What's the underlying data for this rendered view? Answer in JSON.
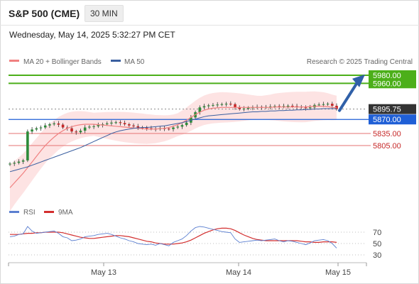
{
  "header": {
    "title": "S&P 500 (CME)",
    "timeframe": "30 MIN"
  },
  "datetime": "Wednesday, May 14, 2025 5:32:27 PM CET",
  "copyright": "Research © 2025 Trading Central",
  "colors": {
    "bollinger": "#f08080",
    "ma50": "#3a5fa0",
    "up_candle": "#2e8b3a",
    "down_candle": "#c62828",
    "resistance": "#4caf1a",
    "current_price": "#333333",
    "pivot": "#1f5fd6",
    "support": "#e57373",
    "arrow": "#3060a8",
    "rsi": "#5b7fd0",
    "rsi_ma": "#d32f2f"
  },
  "chart_data": [
    {
      "type": "candlestick",
      "legend": [
        {
          "name": "MA 20 + Bollinger Bands",
          "color": "#f08080"
        },
        {
          "name": "MA 50",
          "color": "#3a5fa0"
        }
      ],
      "x_ticks": [
        "May 13",
        "May 14",
        "May 15"
      ],
      "levels": [
        {
          "label": "5980.00",
          "value": 5980,
          "kind": "resistance"
        },
        {
          "label": "5960.00",
          "value": 5960,
          "kind": "resistance"
        },
        {
          "label": "5895.75",
          "value": 5895.75,
          "kind": "current"
        },
        {
          "label": "5870.00",
          "value": 5870,
          "kind": "pivot"
        },
        {
          "label": "5835.00",
          "value": 5835,
          "kind": "support"
        },
        {
          "label": "5805.00",
          "value": 5805,
          "kind": "support"
        }
      ],
      "closes": [
        5760,
        5762,
        5765,
        5768,
        5840,
        5845,
        5848,
        5850,
        5855,
        5858,
        5860,
        5857,
        5850,
        5848,
        5840,
        5838,
        5842,
        5850,
        5852,
        5853,
        5856,
        5858,
        5860,
        5862,
        5863,
        5861,
        5858,
        5855,
        5853,
        5850,
        5849,
        5848,
        5847,
        5846,
        5848,
        5847,
        5846,
        5850,
        5852,
        5856,
        5862,
        5875,
        5888,
        5900,
        5903,
        5905,
        5906,
        5907,
        5908,
        5909,
        5908,
        5900,
        5896,
        5897,
        5899,
        5900,
        5901,
        5900,
        5901,
        5902,
        5903,
        5902,
        5903,
        5904,
        5903,
        5902,
        5900,
        5898,
        5900,
        5906,
        5907,
        5908,
        5909,
        5904,
        5895.75
      ],
      "ma20": [
        5700,
        5712,
        5724,
        5736,
        5750,
        5764,
        5778,
        5792,
        5805,
        5816,
        5826,
        5835,
        5842,
        5848,
        5852,
        5855,
        5857,
        5858,
        5858,
        5858,
        5857,
        5856,
        5855,
        5854,
        5853,
        5852,
        5851,
        5850,
        5849,
        5848,
        5847,
        5846,
        5846,
        5846,
        5847,
        5848,
        5850,
        5853,
        5857,
        5862,
        5868,
        5875,
        5882,
        5888,
        5893,
        5896,
        5898,
        5899,
        5900,
        5900,
        5900,
        5900,
        5900,
        5900,
        5900,
        5900,
        5900,
        5900,
        5900,
        5900,
        5901,
        5901,
        5901,
        5901,
        5901,
        5901,
        5901,
        5901,
        5902,
        5903,
        5903,
        5903,
        5902,
        5900,
        5899
      ],
      "ma50": [
        5740,
        5743,
        5746,
        5749,
        5752,
        5756,
        5760,
        5764,
        5768,
        5772,
        5776,
        5780,
        5784,
        5788,
        5792,
        5796,
        5800,
        5805,
        5810,
        5815,
        5820,
        5825,
        5830,
        5835,
        5839,
        5842,
        5844,
        5846,
        5848,
        5849,
        5850,
        5850,
        5851,
        5852,
        5853,
        5854,
        5856,
        5858,
        5860,
        5862,
        5865,
        5868,
        5871,
        5874,
        5877,
        5879,
        5880,
        5881,
        5882,
        5883,
        5884,
        5885,
        5886,
        5887,
        5888,
        5889,
        5889,
        5890,
        5890,
        5891,
        5891,
        5892,
        5892,
        5893,
        5893,
        5894,
        5894,
        5895,
        5895,
        5896,
        5896,
        5897,
        5897,
        5897,
        5897
      ]
    },
    {
      "type": "line",
      "legend": [
        {
          "name": "RSI",
          "color": "#5b7fd0"
        },
        {
          "name": "9MA",
          "color": "#d32f2f"
        }
      ],
      "y_ticks": [
        70,
        50,
        30
      ],
      "rsi": [
        62,
        63,
        66,
        67,
        80,
        72,
        68,
        69,
        70,
        71,
        72,
        68,
        62,
        60,
        55,
        56,
        58,
        62,
        63,
        64,
        66,
        67,
        68,
        66,
        63,
        60,
        58,
        55,
        53,
        50,
        49,
        48,
        49,
        47,
        50,
        48,
        46,
        52,
        55,
        58,
        64,
        72,
        78,
        80,
        79,
        77,
        75,
        73,
        71,
        70,
        69,
        58,
        52,
        53,
        54,
        55,
        56,
        55,
        56,
        57,
        58,
        55,
        53,
        55,
        54,
        52,
        50,
        48,
        51,
        55,
        56,
        57,
        55,
        50,
        42
      ],
      "ma9": [
        66,
        66,
        66,
        67,
        68,
        68,
        69,
        69,
        70,
        70,
        70,
        70,
        69,
        67,
        65,
        63,
        61,
        60,
        59,
        59,
        60,
        61,
        62,
        63,
        64,
        64,
        63,
        62,
        60,
        58,
        56,
        54,
        53,
        51,
        50,
        49,
        49,
        49,
        50,
        51,
        53,
        56,
        60,
        64,
        68,
        71,
        74,
        76,
        77,
        77,
        76,
        73,
        69,
        65,
        62,
        59,
        57,
        56,
        55,
        55,
        55,
        55,
        55,
        55,
        55,
        55,
        54,
        53,
        53,
        52,
        52,
        53,
        53,
        53,
        52
      ]
    }
  ]
}
